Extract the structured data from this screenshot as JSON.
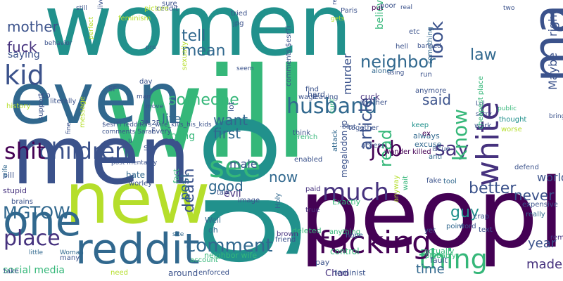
{
  "palette": {
    "background": "#ffffff",
    "dark_purple": "#440154",
    "purple": "#46327e",
    "indigo": "#3b528b",
    "blue": "#31688e",
    "teal": "#21918c",
    "green": "#35b779",
    "lime": "#b5de2b",
    "yellow": "#fde725"
  },
  "words": [
    {
      "text": "women",
      "color": "#21918c",
      "orientation": "horizontal"
    },
    {
      "text": "will",
      "color": "#35b779",
      "orientation": "horizontal"
    },
    {
      "text": "people",
      "color": "#440154",
      "orientation": "horizontal"
    },
    {
      "text": "new",
      "color": "#b5de2b",
      "orientation": "horizontal"
    },
    {
      "text": "men",
      "color": "#3b528b",
      "orientation": "horizontal"
    },
    {
      "text": "even",
      "color": "#31688e",
      "orientation": "horizontal"
    },
    {
      "text": "go",
      "color": "#21918c",
      "orientation": "vertical"
    },
    {
      "text": "make",
      "color": "#3b528b",
      "orientation": "vertical"
    },
    {
      "text": "reddit",
      "color": "#31688e",
      "orientation": "horizontal"
    },
    {
      "text": "one",
      "color": "#31688e",
      "orientation": "horizontal"
    },
    {
      "text": "kid",
      "color": "#3b528b",
      "orientation": "horizontal"
    },
    {
      "text": "see",
      "color": "#35b779",
      "orientation": "horizontal"
    },
    {
      "text": "much",
      "color": "#46327e",
      "orientation": "horizontal"
    },
    {
      "text": "thing",
      "color": "#35b779",
      "orientation": "horizontal"
    },
    {
      "text": "fucking",
      "color": "#440154",
      "orientation": "horizontal"
    },
    {
      "text": "children",
      "color": "#3b528b",
      "orientation": "horizontal"
    },
    {
      "text": "shit",
      "color": "#440154",
      "orientation": "horizontal"
    },
    {
      "text": "husband",
      "color": "#31688e",
      "orientation": "horizontal"
    },
    {
      "text": "white",
      "color": "#46327e",
      "orientation": "vertical"
    },
    {
      "text": "comment",
      "color": "#31688e",
      "orientation": "horizontal"
    },
    {
      "text": "place",
      "color": "#46327e",
      "orientation": "horizontal"
    },
    {
      "text": "job",
      "color": "#440154",
      "orientation": "horizontal"
    },
    {
      "text": "say",
      "color": "#46327e",
      "orientation": "horizontal"
    },
    {
      "text": "someone",
      "color": "#35b779",
      "orientation": "horizontal"
    },
    {
      "text": "MGTOW",
      "color": "#31688e",
      "orientation": "horizontal"
    },
    {
      "text": "neighbor",
      "color": "#31688e",
      "orientation": "horizontal"
    },
    {
      "text": "mean",
      "color": "#31688e",
      "orientation": "horizontal"
    },
    {
      "text": "tell",
      "color": "#31688e",
      "orientation": "horizontal"
    },
    {
      "text": "law",
      "color": "#31688e",
      "orientation": "horizontal"
    },
    {
      "text": "want",
      "color": "#31688e",
      "orientation": "horizontal"
    },
    {
      "text": "first",
      "color": "#31688e",
      "orientation": "horizontal"
    },
    {
      "text": "life",
      "color": "#31688e",
      "orientation": "horizontal"
    },
    {
      "text": "know",
      "color": "#35b779",
      "orientation": "vertical"
    },
    {
      "text": "article",
      "color": "#3b528b",
      "orientation": "vertical"
    },
    {
      "text": "look",
      "color": "#3b528b",
      "orientation": "vertical"
    },
    {
      "text": "said",
      "color": "#3b528b",
      "orientation": "horizontal"
    },
    {
      "text": "read",
      "color": "#35b779",
      "orientation": "vertical"
    },
    {
      "text": "death",
      "color": "#3b528b",
      "orientation": "vertical"
    },
    {
      "text": "post",
      "color": "#31688e",
      "orientation": "vertical"
    },
    {
      "text": "guy",
      "color": "#21918c",
      "orientation": "horizontal"
    },
    {
      "text": "better",
      "color": "#3b528b",
      "orientation": "horizontal"
    },
    {
      "text": "never",
      "color": "#3b528b",
      "orientation": "horizontal"
    },
    {
      "text": "year",
      "color": "#3b528b",
      "orientation": "horizontal"
    },
    {
      "text": "made",
      "color": "#46327e",
      "orientation": "horizontal"
    },
    {
      "text": "time",
      "color": "#31688e",
      "orientation": "horizontal"
    },
    {
      "text": "now",
      "color": "#31688e",
      "orientation": "horizontal"
    },
    {
      "text": "good",
      "color": "#31688e",
      "orientation": "horizontal"
    },
    {
      "text": "male",
      "color": "#3b528b",
      "orientation": "horizontal"
    },
    {
      "text": "evil",
      "color": "#46327e",
      "orientation": "horizontal"
    },
    {
      "text": "fuck",
      "color": "#46327e",
      "orientation": "horizontal"
    },
    {
      "text": "mother",
      "color": "#3b528b",
      "orientation": "horizontal"
    },
    {
      "text": "saying",
      "color": "#3b528b",
      "orientation": "horizontal"
    },
    {
      "text": "worldnews",
      "color": "#3b528b",
      "orientation": "horizontal"
    },
    {
      "text": "Maybe",
      "color": "#3b528b",
      "orientation": "vertical"
    },
    {
      "text": "right",
      "color": "#3b528b",
      "orientation": "vertical"
    },
    {
      "text": "murder",
      "color": "#3b528b",
      "orientation": "vertical"
    },
    {
      "text": "believe",
      "color": "#35b779",
      "orientation": "vertical"
    },
    {
      "text": "trying",
      "color": "#35b779",
      "orientation": "horizontal"
    },
    {
      "text": "Chad",
      "color": "#46327e",
      "orientation": "horizontal"
    },
    {
      "text": "neighbor wife",
      "color": "#35b779",
      "orientation": "horizontal"
    },
    {
      "text": "social media",
      "color": "#35b779",
      "orientation": "horizontal"
    },
    {
      "text": "feminist",
      "color": "#3b528b",
      "orientation": "horizontal"
    },
    {
      "text": "fault",
      "color": "#3b528b",
      "orientation": "horizontal"
    },
    {
      "text": "probably",
      "color": "#35b779",
      "orientation": "horizontal"
    },
    {
      "text": "actually",
      "color": "#35b779",
      "orientation": "horizontal"
    },
    {
      "text": "control",
      "color": "#35b779",
      "orientation": "horizontal"
    },
    {
      "text": "deleted",
      "color": "#35b779",
      "orientation": "horizontal"
    },
    {
      "text": "wonder",
      "color": "#440154",
      "orientation": "horizontal"
    },
    {
      "text": "cunt",
      "color": "#35b779",
      "orientation": "vertical"
    },
    {
      "text": "megalodon jp",
      "color": "#3b528b",
      "orientation": "vertical"
    },
    {
      "text": "pay",
      "color": "#3b528b",
      "orientation": "horizontal"
    },
    {
      "text": "really",
      "color": "#31688e",
      "orientation": "horizontal"
    },
    {
      "text": "bring",
      "color": "#3b528b",
      "orientation": "horizontal"
    },
    {
      "text": "keep",
      "color": "#21918c",
      "orientation": "horizontal"
    },
    {
      "text": "always",
      "color": "#31688e",
      "orientation": "horizontal"
    },
    {
      "text": "excuse",
      "color": "#31688e",
      "orientation": "horizontal"
    },
    {
      "text": "killed",
      "color": "#440154",
      "orientation": "horizontal"
    },
    {
      "text": "true",
      "color": "#46327e",
      "orientation": "horizontal"
    },
    {
      "text": "paid",
      "color": "#46327e",
      "orientation": "horizontal"
    },
    {
      "text": "anything",
      "color": "#35b779",
      "orientation": "horizontal"
    },
    {
      "text": "Exactly",
      "color": "#35b779",
      "orientation": "horizontal"
    },
    {
      "text": "fake",
      "color": "#3b528b",
      "orientation": "horizontal"
    },
    {
      "text": "account",
      "color": "#35b779",
      "orientation": "horizontal"
    },
    {
      "text": "enforced",
      "color": "#3b528b",
      "orientation": "horizontal"
    },
    {
      "text": "around",
      "color": "#3b528b",
      "orientation": "horizontal"
    },
    {
      "text": "need",
      "color": "#b5de2b",
      "orientation": "horizontal"
    },
    {
      "text": "many",
      "color": "#3b528b",
      "orientation": "horizontal"
    },
    {
      "text": "little",
      "color": "#31688e",
      "orientation": "horizontal"
    },
    {
      "text": "Woman",
      "color": "#31688e",
      "orientation": "horizontal"
    },
    {
      "text": "take",
      "color": "#3b528b",
      "orientation": "horizontal"
    },
    {
      "text": "pill",
      "color": "#3b528b",
      "orientation": "horizontal"
    },
    {
      "text": "stupid",
      "color": "#46327e",
      "orientation": "horizontal"
    },
    {
      "text": "wife",
      "color": "#31688e",
      "orientation": "vertical"
    },
    {
      "text": "brains",
      "color": "#3b528b",
      "orientation": "horizontal"
    },
    {
      "text": "hate",
      "color": "#31688e",
      "orientation": "horizontal"
    },
    {
      "text": "worley",
      "color": "#3b528b",
      "orientation": "horizontal"
    },
    {
      "text": "fact",
      "color": "#35b779",
      "orientation": "vertical"
    },
    {
      "text": "site",
      "color": "#31688e",
      "orientation": "horizontal"
    },
    {
      "text": "talk",
      "color": "#3b528b",
      "orientation": "horizontal"
    },
    {
      "text": "image",
      "color": "#3b528b",
      "orientation": "horizontal"
    },
    {
      "text": "Well",
      "color": "#31688e",
      "orientation": "horizontal"
    },
    {
      "text": "oh",
      "color": "#31688e",
      "orientation": "horizontal"
    },
    {
      "text": "Holy",
      "color": "#31688e",
      "orientation": "vertical"
    },
    {
      "text": "brown",
      "color": "#46327e",
      "orientation": "horizontal"
    },
    {
      "text": "friend",
      "color": "#3b528b",
      "orientation": "horizontal"
    },
    {
      "text": "hope",
      "color": "#31688e",
      "orientation": "horizontal"
    },
    {
      "text": "yet",
      "color": "#3b528b",
      "orientation": "horizontal"
    },
    {
      "text": "point",
      "color": "#31688e",
      "orientation": "horizontal"
    },
    {
      "text": "crap",
      "color": "#3b528b",
      "orientation": "horizontal"
    },
    {
      "text": "word",
      "color": "#3b528b",
      "orientation": "horizontal"
    },
    {
      "text": "text",
      "color": "#3b528b",
      "orientation": "horizontal"
    },
    {
      "text": "remember",
      "color": "#46327e",
      "orientation": "horizontal"
    },
    {
      "text": "expensive",
      "color": "#3b528b",
      "orientation": "horizontal"
    },
    {
      "text": "anyway",
      "color": "#b5de2b",
      "orientation": "vertical"
    },
    {
      "text": "wait",
      "color": "#35b779",
      "orientation": "vertical"
    },
    {
      "text": "tool",
      "color": "#31688e",
      "orientation": "horizontal"
    },
    {
      "text": "attack",
      "color": "#31688e",
      "orientation": "vertical"
    },
    {
      "text": "defend",
      "color": "#3b528b",
      "orientation": "horizontal"
    },
    {
      "text": "thought",
      "color": "#21918c",
      "orientation": "horizontal"
    },
    {
      "text": "worse",
      "color": "#b5de2b",
      "orientation": "horizontal"
    },
    {
      "text": "public",
      "color": "#35b779",
      "orientation": "horizontal"
    },
    {
      "text": "Lol",
      "color": "#3b528b",
      "orientation": "horizontal"
    },
    {
      "text": "sorry",
      "color": "#3b528b",
      "orientation": "horizontal"
    },
    {
      "text": "work",
      "color": "#3b528b",
      "orientation": "horizontal"
    },
    {
      "text": "cheapest place",
      "color": "#35b779",
      "orientation": "vertical"
    },
    {
      "text": "ex",
      "color": "#440154",
      "orientation": "horizontal"
    },
    {
      "text": "anti",
      "color": "#31688e",
      "orientation": "horizontal"
    },
    {
      "text": "issue",
      "color": "#3b528b",
      "orientation": "horizontal"
    },
    {
      "text": "access",
      "color": "#3b528b",
      "orientation": "horizontal"
    },
    {
      "text": "together",
      "color": "#3b528b",
      "orientation": "horizontal"
    },
    {
      "text": "best",
      "color": "#3b528b",
      "orientation": "horizontal"
    },
    {
      "text": "think",
      "color": "#3b528b",
      "orientation": "horizontal"
    },
    {
      "text": "French",
      "color": "#35b779",
      "orientation": "horizontal"
    },
    {
      "text": "enabled",
      "color": "#3b528b",
      "orientation": "horizontal"
    },
    {
      "text": "comments $esrTi",
      "color": "#3b528b",
      "orientation": "vertical"
    },
    {
      "text": "lot",
      "color": "#3b528b",
      "orientation": "vertical"
    },
    {
      "text": "hard",
      "color": "#3b528b",
      "orientation": "horizontal"
    },
    {
      "text": "wage",
      "color": "#3b528b",
      "orientation": "horizontal"
    },
    {
      "text": "leaving",
      "color": "#3b528b",
      "orientation": "horizontal"
    },
    {
      "text": "another",
      "color": "#3b528b",
      "orientation": "horizontal"
    },
    {
      "text": "cuck",
      "color": "#46327e",
      "orientation": "horizontal"
    },
    {
      "text": "anymore",
      "color": "#3b528b",
      "orientation": "horizontal"
    },
    {
      "text": "run",
      "color": "#3b528b",
      "orientation": "horizontal"
    },
    {
      "text": "something",
      "color": "#31688e",
      "orientation": "vertical"
    },
    {
      "text": "hell",
      "color": "#3b528b",
      "orientation": "horizontal"
    },
    {
      "text": "etc",
      "color": "#3b528b",
      "orientation": "horizontal"
    },
    {
      "text": "banned",
      "color": "#3b528b",
      "orientation": "horizontal"
    },
    {
      "text": "alone",
      "color": "#31688e",
      "orientation": "horizontal"
    },
    {
      "text": "using",
      "color": "#3b528b",
      "orientation": "horizontal"
    },
    {
      "text": "find",
      "color": "#3b528b",
      "orientation": "horizontal"
    },
    {
      "text": "gets",
      "color": "#b5de2b",
      "orientation": "horizontal"
    },
    {
      "text": "reading",
      "color": "#3b528b",
      "orientation": "vertical"
    },
    {
      "text": "Paris",
      "color": "#3b528b",
      "orientation": "horizontal"
    },
    {
      "text": "put",
      "color": "#440154",
      "orientation": "horizontal"
    },
    {
      "text": "poor",
      "color": "#3b528b",
      "orientation": "horizontal"
    },
    {
      "text": "real",
      "color": "#3b528b",
      "orientation": "horizontal"
    },
    {
      "text": "two",
      "color": "#3b528b",
      "orientation": "horizontal"
    },
    {
      "text": "tried",
      "color": "#3b528b",
      "orientation": "horizontal"
    },
    {
      "text": "jpg",
      "color": "#3b528b",
      "orientation": "horizontal"
    },
    {
      "text": "seem",
      "color": "#3b528b",
      "orientation": "horizontal"
    },
    {
      "text": "sexually",
      "color": "#b5de2b",
      "orientation": "vertical"
    },
    {
      "text": "sure",
      "color": "#3b528b",
      "orientation": "horizontal"
    },
    {
      "text": "ceddit",
      "color": "#3b528b",
      "orientation": "horizontal"
    },
    {
      "text": "picture",
      "color": "#b5de2b",
      "orientation": "horizontal"
    },
    {
      "text": "feminism",
      "color": "#b5de2b",
      "orientation": "horizontal"
    },
    {
      "text": "live",
      "color": "#3b528b",
      "orientation": "vertical"
    },
    {
      "text": "still",
      "color": "#3b528b",
      "orientation": "horizontal"
    },
    {
      "text": "behavior",
      "color": "#3b528b",
      "orientation": "horizontal"
    },
    {
      "text": "perfect",
      "color": "#b5de2b",
      "orientation": "vertical"
    },
    {
      "text": "pro",
      "color": "#3b528b",
      "orientation": "horizontal"
    },
    {
      "text": "day",
      "color": "#3b528b",
      "orientation": "horizontal"
    },
    {
      "text": "man",
      "color": "#3b528b",
      "orientation": "horizontal"
    },
    {
      "text": "move",
      "color": "#3b528b",
      "orientation": "horizontal"
    },
    {
      "text": "SF",
      "color": "#3b528b",
      "orientation": "horizontal"
    },
    {
      "text": "co",
      "color": "#3b528b",
      "orientation": "horizontal"
    },
    {
      "text": "literally",
      "color": "#3b528b",
      "orientation": "horizontal"
    },
    {
      "text": "history",
      "color": "#b5de2b",
      "orientation": "horizontal"
    },
    {
      "text": "support",
      "color": "#3b528b",
      "orientation": "vertical"
    },
    {
      "text": "message",
      "color": "#b5de2b",
      "orientation": "vertical"
    },
    {
      "text": "fine",
      "color": "#3b528b",
      "orientation": "vertical"
    },
    {
      "text": "S",
      "color": "#3b528b",
      "orientation": "horizontal"
    },
    {
      "text": "$esrTi redditors_wife_kills_his_kids",
      "color": "#3b528b",
      "orientation": "horizontal"
    },
    {
      "text": "comments Sarah",
      "color": "#3b528b",
      "orientation": "horizontal"
    },
    {
      "text": "3A 2F",
      "color": "#3b528b",
      "orientation": "horizontal"
    },
    {
      "text": "Every",
      "color": "#3b528b",
      "orientation": "horizontal"
    },
    {
      "text": "u",
      "color": "#3b528b",
      "orientation": "horizontal"
    },
    {
      "text": "post mentality",
      "color": "#3b528b",
      "orientation": "horizontal"
    }
  ]
}
